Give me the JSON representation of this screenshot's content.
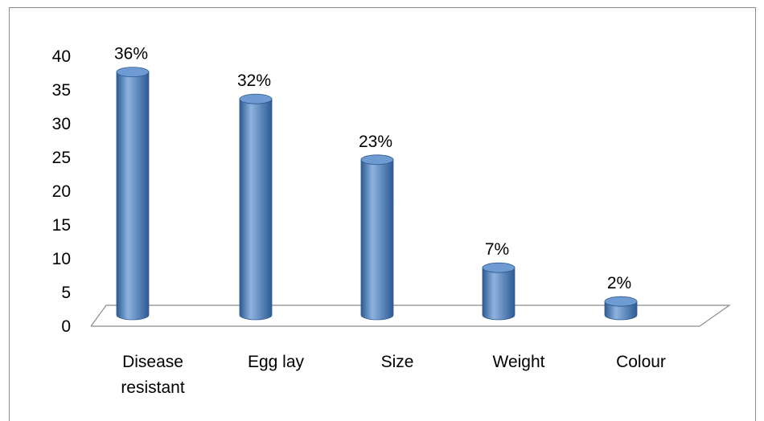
{
  "chart_data": {
    "type": "bar",
    "style": "3d-cylinder",
    "title": "",
    "xlabel": "",
    "ylabel": "",
    "categories": [
      [
        "Disease",
        "resistant"
      ],
      [
        "Egg lay"
      ],
      [
        "Size"
      ],
      [
        "Weight"
      ],
      [
        "Colour"
      ]
    ],
    "values": [
      36,
      32,
      23,
      7,
      2
    ],
    "data_labels": [
      "36%",
      "32%",
      "23%",
      "7%",
      "2%"
    ],
    "ylim": [
      0,
      40
    ],
    "yticks": [
      "0",
      "5",
      "10",
      "15",
      "20",
      "25",
      "30",
      "35",
      "40"
    ],
    "grid": false,
    "legend": "none",
    "colors": {
      "bar_fill": "#4f81bd",
      "bar_dark": "#2c5a91",
      "bar_light": "#8fb3e0",
      "bar_top": "#6f9bd3",
      "floor_line": "#8c8c8c"
    }
  }
}
